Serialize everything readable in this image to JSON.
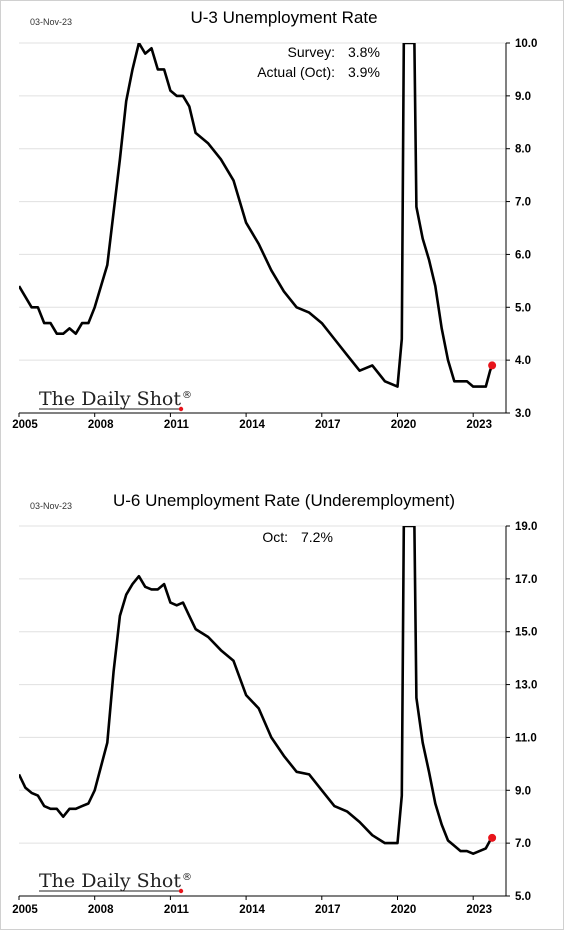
{
  "chart_data": [
    {
      "type": "line",
      "date_stamp": "03-Nov-23",
      "title": "U-3 Unemployment Rate",
      "annotations": [
        {
          "label": "Survey:",
          "value": "3.8%"
        },
        {
          "label": "Actual (Oct):",
          "value": "3.9%"
        }
      ],
      "logo": "The Daily Shot",
      "logo_mark": "®",
      "xlim": [
        2005.0,
        2024.3
      ],
      "ylim": [
        3.0,
        10.0
      ],
      "x_ticks": [
        2005,
        2008,
        2011,
        2014,
        2017,
        2020,
        2023
      ],
      "x_tick_labels": [
        "2005",
        "2008",
        "2011",
        "2014",
        "2017",
        "2020",
        "2023"
      ],
      "y_ticks": [
        3.0,
        4.0,
        5.0,
        6.0,
        7.0,
        8.0,
        9.0,
        10.0
      ],
      "y_tick_labels": [
        "3.0",
        "4.0",
        "5.0",
        "6.0",
        "7.0",
        "8.0",
        "9.0",
        "10.0"
      ],
      "grid": "horizontal",
      "series": [
        {
          "color": "#000000",
          "x": [
            2005.0,
            2005.25,
            2005.5,
            2005.75,
            2006.0,
            2006.25,
            2006.5,
            2006.75,
            2007.0,
            2007.25,
            2007.5,
            2007.75,
            2008.0,
            2008.25,
            2008.5,
            2008.75,
            2009.0,
            2009.25,
            2009.5,
            2009.75,
            2010.0,
            2010.25,
            2010.5,
            2010.75,
            2011.0,
            2011.25,
            2011.5,
            2011.75,
            2012.0,
            2012.5,
            2013.0,
            2013.5,
            2014.0,
            2014.5,
            2015.0,
            2015.5,
            2016.0,
            2016.5,
            2017.0,
            2017.5,
            2018.0,
            2018.5,
            2019.0,
            2019.5,
            2020.0,
            2020.17,
            2020.25,
            2020.33,
            2020.42,
            2020.5,
            2020.58,
            2020.67,
            2020.75,
            2021.0,
            2021.25,
            2021.5,
            2021.75,
            2022.0,
            2022.25,
            2022.5,
            2022.75,
            2023.0,
            2023.25,
            2023.5,
            2023.67,
            2023.75
          ],
          "y": [
            5.4,
            5.2,
            5.0,
            5.0,
            4.7,
            4.7,
            4.5,
            4.5,
            4.6,
            4.5,
            4.7,
            4.7,
            5.0,
            5.4,
            5.8,
            6.8,
            7.8,
            8.9,
            9.5,
            10.0,
            9.8,
            9.9,
            9.5,
            9.5,
            9.1,
            9.0,
            9.0,
            8.8,
            8.3,
            8.1,
            7.8,
            7.4,
            6.6,
            6.2,
            5.7,
            5.3,
            5.0,
            4.9,
            4.7,
            4.4,
            4.1,
            3.8,
            3.9,
            3.6,
            3.5,
            4.4,
            10.0,
            10.0,
            10.0,
            10.0,
            10.0,
            10.0,
            6.9,
            6.3,
            5.9,
            5.4,
            4.6,
            4.0,
            3.6,
            3.6,
            3.6,
            3.5,
            3.5,
            3.5,
            3.8,
            3.9
          ]
        }
      ]
    },
    {
      "type": "line",
      "date_stamp": "03-Nov-23",
      "title": "U-6 Unemployment Rate (Underemployment)",
      "annotations": [
        {
          "label": "Oct:",
          "value": "7.2%"
        }
      ],
      "logo": "The Daily Shot",
      "logo_mark": "®",
      "xlim": [
        2005.0,
        2024.3
      ],
      "ylim": [
        5.0,
        19.0
      ],
      "x_ticks": [
        2005,
        2008,
        2011,
        2014,
        2017,
        2020,
        2023
      ],
      "x_tick_labels": [
        "2005",
        "2008",
        "2011",
        "2014",
        "2017",
        "2020",
        "2023"
      ],
      "y_ticks": [
        5.0,
        7.0,
        9.0,
        11.0,
        13.0,
        15.0,
        17.0,
        19.0
      ],
      "y_tick_labels": [
        "5.0",
        "7.0",
        "9.0",
        "11.0",
        "13.0",
        "15.0",
        "17.0",
        "19.0"
      ],
      "grid": "horizontal",
      "series": [
        {
          "color": "#000000",
          "x": [
            2005.0,
            2005.25,
            2005.5,
            2005.75,
            2006.0,
            2006.25,
            2006.5,
            2006.75,
            2007.0,
            2007.25,
            2007.5,
            2007.75,
            2008.0,
            2008.25,
            2008.5,
            2008.75,
            2009.0,
            2009.25,
            2009.5,
            2009.75,
            2010.0,
            2010.25,
            2010.5,
            2010.75,
            2011.0,
            2011.25,
            2011.5,
            2011.75,
            2012.0,
            2012.5,
            2013.0,
            2013.5,
            2014.0,
            2014.5,
            2015.0,
            2015.5,
            2016.0,
            2016.5,
            2017.0,
            2017.5,
            2018.0,
            2018.5,
            2019.0,
            2019.5,
            2020.0,
            2020.17,
            2020.25,
            2020.33,
            2020.42,
            2020.5,
            2020.58,
            2020.67,
            2020.75,
            2021.0,
            2021.25,
            2021.5,
            2021.75,
            2022.0,
            2022.25,
            2022.5,
            2022.75,
            2023.0,
            2023.25,
            2023.5,
            2023.67,
            2023.75
          ],
          "y": [
            9.6,
            9.1,
            8.9,
            8.8,
            8.4,
            8.3,
            8.3,
            8.0,
            8.3,
            8.3,
            8.4,
            8.5,
            9.0,
            9.9,
            10.8,
            13.5,
            15.6,
            16.4,
            16.8,
            17.1,
            16.7,
            16.6,
            16.6,
            16.8,
            16.1,
            16.0,
            16.1,
            15.6,
            15.1,
            14.8,
            14.3,
            13.9,
            12.6,
            12.1,
            11.0,
            10.3,
            9.7,
            9.6,
            9.0,
            8.4,
            8.2,
            7.8,
            7.3,
            7.0,
            7.0,
            8.8,
            19.0,
            19.0,
            19.0,
            19.0,
            19.0,
            19.0,
            12.5,
            10.8,
            9.7,
            8.5,
            7.7,
            7.1,
            6.9,
            6.7,
            6.7,
            6.6,
            6.7,
            6.8,
            7.1,
            7.2
          ]
        }
      ]
    }
  ]
}
